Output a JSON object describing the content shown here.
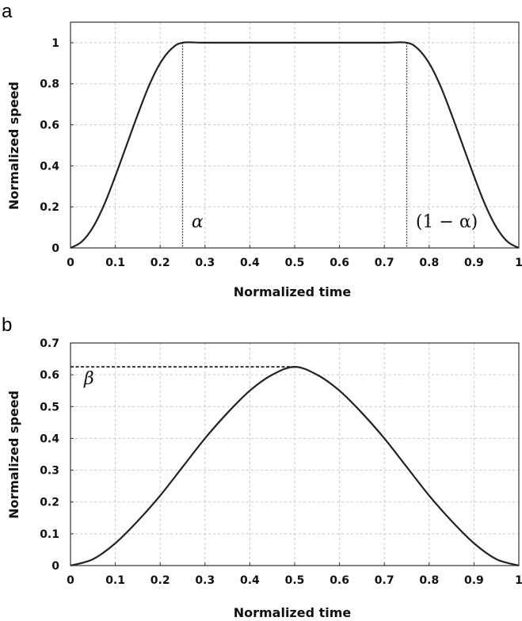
{
  "chart_data": [
    {
      "panel": "a",
      "type": "line",
      "xlabel": "Normalized time",
      "ylabel": "Normalized speed",
      "xlim": [
        0,
        1
      ],
      "ylim": [
        0,
        1.1
      ],
      "xticks": [
        "0",
        "0.1",
        "0.2",
        "0.3",
        "0.4",
        "0.5",
        "0.6",
        "0.7",
        "0.8",
        "0.9",
        "1"
      ],
      "yticks": [
        "0",
        "0.2",
        "0.4",
        "0.6",
        "0.8",
        "1"
      ],
      "grid": true,
      "series": [
        {
          "x": [
            0,
            0.025,
            0.05,
            0.075,
            0.1,
            0.125,
            0.15,
            0.175,
            0.2,
            0.225,
            0.25,
            0.3,
            0.4,
            0.5,
            0.6,
            0.7,
            0.75,
            0.775,
            0.8,
            0.825,
            0.85,
            0.875,
            0.9,
            0.925,
            0.95,
            0.975,
            1
          ],
          "y": [
            0,
            0.03,
            0.1,
            0.21,
            0.35,
            0.5,
            0.65,
            0.79,
            0.9,
            0.97,
            1,
            1,
            1,
            1,
            1,
            1,
            1,
            0.97,
            0.9,
            0.79,
            0.65,
            0.5,
            0.35,
            0.21,
            0.1,
            0.03,
            0
          ]
        }
      ],
      "vlines": [
        0.25,
        0.75
      ],
      "annotations": [
        {
          "text": "α",
          "x": 0.27,
          "y": 0.1
        },
        {
          "text": "(1 − α)",
          "x": 0.77,
          "y": 0.1
        }
      ]
    },
    {
      "panel": "b",
      "type": "line",
      "xlabel": "Normalized time",
      "ylabel": "Normalized speed",
      "xlim": [
        0,
        1
      ],
      "ylim": [
        0,
        0.7
      ],
      "xticks": [
        "0",
        "0.1",
        "0.2",
        "0.3",
        "0.4",
        "0.5",
        "0.6",
        "0.7",
        "0.8",
        "0.9",
        "1"
      ],
      "yticks": [
        "0",
        "0.1",
        "0.2",
        "0.3",
        "0.4",
        "0.5",
        "0.6",
        "0.7"
      ],
      "grid": true,
      "series": [
        {
          "x": [
            0,
            0.05,
            0.1,
            0.15,
            0.2,
            0.25,
            0.3,
            0.35,
            0.4,
            0.45,
            0.5,
            0.55,
            0.6,
            0.65,
            0.7,
            0.75,
            0.8,
            0.85,
            0.9,
            0.95,
            1
          ],
          "y": [
            0,
            0.02,
            0.07,
            0.14,
            0.22,
            0.31,
            0.4,
            0.48,
            0.55,
            0.6,
            0.625,
            0.6,
            0.55,
            0.48,
            0.4,
            0.31,
            0.22,
            0.14,
            0.07,
            0.02,
            0
          ]
        }
      ],
      "hline": {
        "y": 0.625,
        "x_from": 0,
        "x_to": 0.5
      },
      "annotations": [
        {
          "text": "β",
          "x": 0.03,
          "y": 0.57
        }
      ]
    }
  ]
}
